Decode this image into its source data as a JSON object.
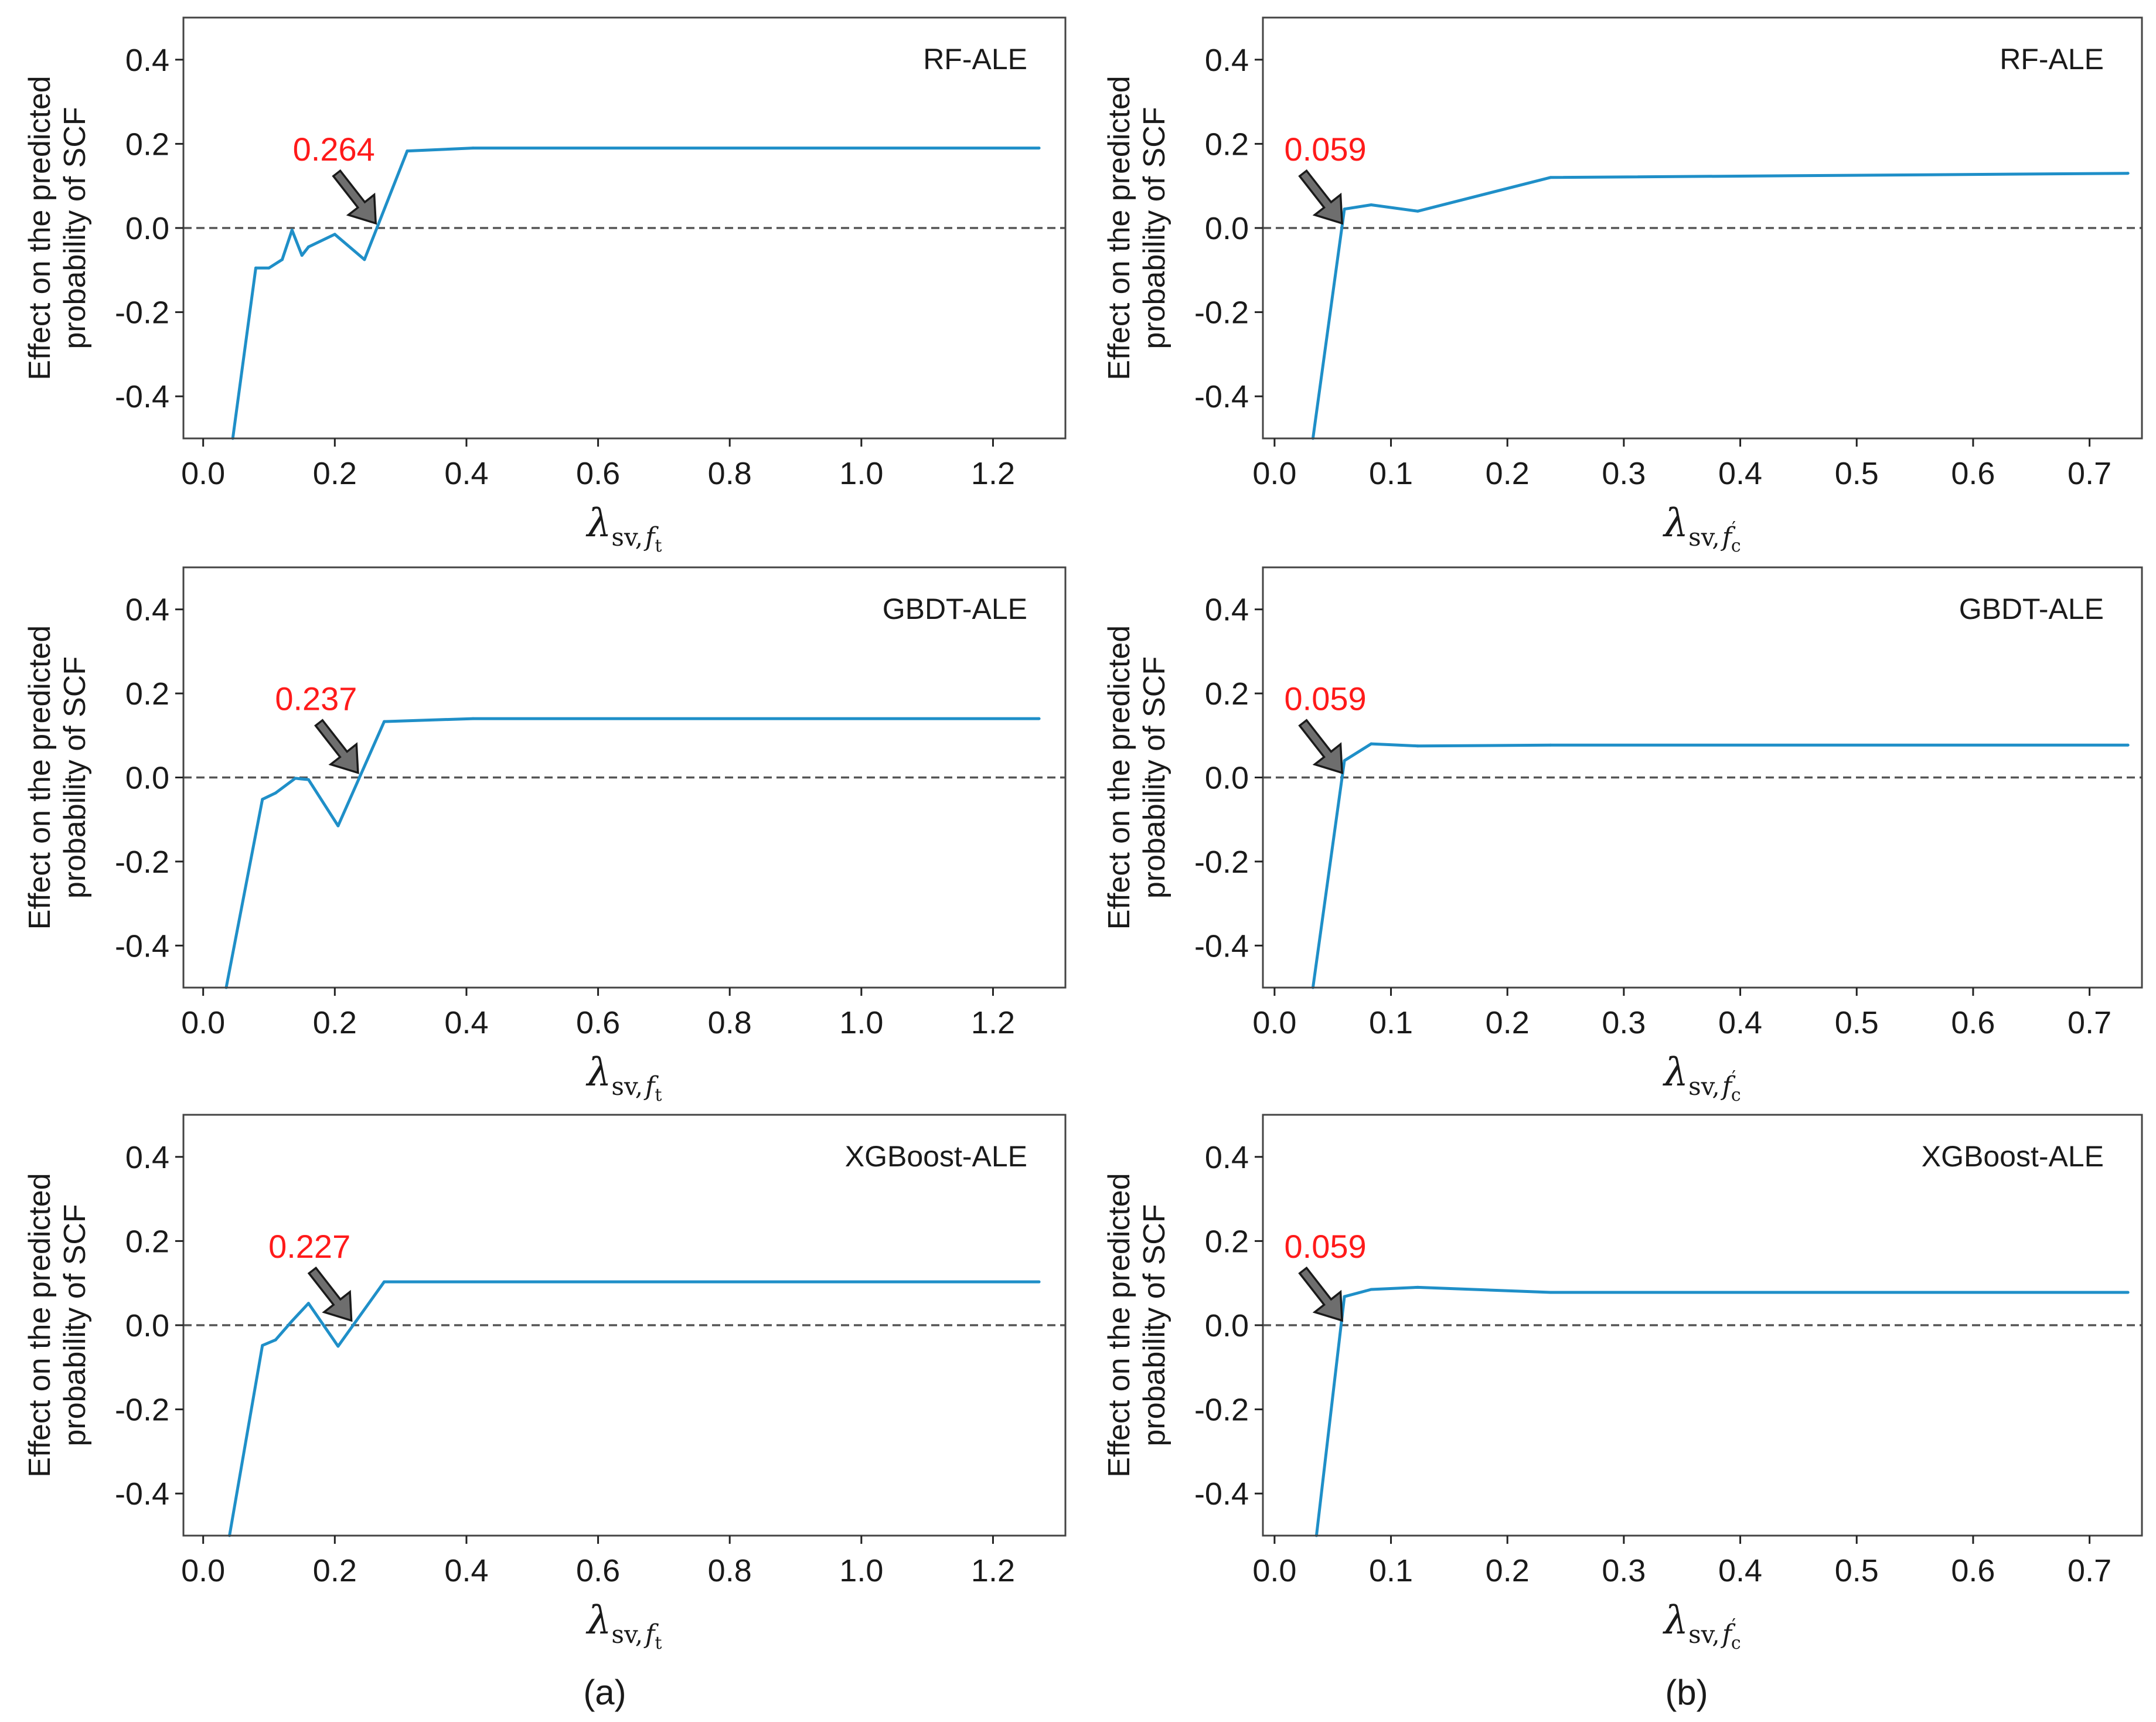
{
  "figure": {
    "panel_letters": [
      "(a)",
      "(b)"
    ],
    "colors": {
      "line": "#1f8fc8",
      "threshold": "#ff1a1a",
      "arrow": "#6e6e6e",
      "zero_line": "#555555",
      "frame": "#444444"
    }
  },
  "chart_data": [
    {
      "type": "line",
      "model": "RF-ALE",
      "column": "a",
      "ylabel_line1": "Effect on the predicted",
      "ylabel_line2": "probability of SCF",
      "xlabel": {
        "symbol": "λ",
        "sub": "sv,",
        "subvar": "f",
        "subsub": "t"
      },
      "xlim": [
        -0.03,
        1.31
      ],
      "ylim": [
        -0.5,
        0.5
      ],
      "xticks": [
        0.0,
        0.2,
        0.4,
        0.6,
        0.8,
        1.0,
        1.2
      ],
      "xtick_labels": [
        "0.0",
        "0.2",
        "0.4",
        "0.6",
        "0.8",
        "1.0",
        "1.2"
      ],
      "yticks": [
        0.4,
        0.2,
        0.0,
        -0.2,
        -0.4
      ],
      "ytick_labels": [
        "0.4",
        "0.2",
        "0.0",
        "-0.2",
        "-0.4"
      ],
      "threshold": {
        "label": "0.264",
        "value": 0.264
      },
      "x": [
        0.045,
        0.08,
        0.1,
        0.12,
        0.135,
        0.15,
        0.16,
        0.2,
        0.245,
        0.31,
        0.41,
        1.27
      ],
      "y": [
        -0.5,
        -0.095,
        -0.095,
        -0.075,
        -0.005,
        -0.065,
        -0.045,
        -0.015,
        -0.075,
        0.183,
        0.19,
        0.19
      ]
    },
    {
      "type": "line",
      "model": "RF-ALE",
      "column": "b",
      "ylabel_line1": "Effect on the predicted",
      "ylabel_line2": "probability of SCF",
      "xlabel": {
        "symbol": "λ",
        "sub": "sv,",
        "subvar": "f",
        "subsub": "c",
        "prime": "′"
      },
      "xlim": [
        -0.01,
        0.745
      ],
      "ylim": [
        -0.5,
        0.5
      ],
      "xticks": [
        0.0,
        0.1,
        0.2,
        0.3,
        0.4,
        0.5,
        0.6,
        0.7
      ],
      "xtick_labels": [
        "0.0",
        "0.1",
        "0.2",
        "0.3",
        "0.4",
        "0.5",
        "0.6",
        "0.7"
      ],
      "yticks": [
        0.4,
        0.2,
        0.0,
        -0.2,
        -0.4
      ],
      "ytick_labels": [
        "0.4",
        "0.2",
        "0.0",
        "-0.2",
        "-0.4"
      ],
      "threshold": {
        "label": "0.059",
        "value": 0.059
      },
      "x": [
        0.033,
        0.06,
        0.083,
        0.123,
        0.237,
        0.733
      ],
      "y": [
        -0.5,
        0.045,
        0.055,
        0.04,
        0.12,
        0.13
      ]
    },
    {
      "type": "line",
      "model": "GBDT-ALE",
      "column": "a",
      "ylabel_line1": "Effect on the predicted",
      "ylabel_line2": "probability of SCF",
      "xlabel": {
        "symbol": "λ",
        "sub": "sv,",
        "subvar": "f",
        "subsub": "t"
      },
      "xlim": [
        -0.03,
        1.31
      ],
      "ylim": [
        -0.5,
        0.5
      ],
      "xticks": [
        0.0,
        0.2,
        0.4,
        0.6,
        0.8,
        1.0,
        1.2
      ],
      "xtick_labels": [
        "0.0",
        "0.2",
        "0.4",
        "0.6",
        "0.8",
        "1.0",
        "1.2"
      ],
      "yticks": [
        0.4,
        0.2,
        0.0,
        -0.2,
        -0.4
      ],
      "ytick_labels": [
        "0.4",
        "0.2",
        "0.0",
        "-0.2",
        "-0.4"
      ],
      "threshold": {
        "label": "0.237",
        "value": 0.237
      },
      "x": [
        0.035,
        0.09,
        0.11,
        0.14,
        0.16,
        0.205,
        0.275,
        0.41,
        1.27
      ],
      "y": [
        -0.5,
        -0.052,
        -0.037,
        -0.002,
        -0.005,
        -0.115,
        0.133,
        0.14,
        0.14
      ]
    },
    {
      "type": "line",
      "model": "GBDT-ALE",
      "column": "b",
      "ylabel_line1": "Effect on the predicted",
      "ylabel_line2": "probability of SCF",
      "xlabel": {
        "symbol": "λ",
        "sub": "sv,",
        "subvar": "f",
        "subsub": "c",
        "prime": "′"
      },
      "xlim": [
        -0.01,
        0.745
      ],
      "ylim": [
        -0.5,
        0.5
      ],
      "xticks": [
        0.0,
        0.1,
        0.2,
        0.3,
        0.4,
        0.5,
        0.6,
        0.7
      ],
      "xtick_labels": [
        "0.0",
        "0.1",
        "0.2",
        "0.3",
        "0.4",
        "0.5",
        "0.6",
        "0.7"
      ],
      "yticks": [
        0.4,
        0.2,
        0.0,
        -0.2,
        -0.4
      ],
      "ytick_labels": [
        "0.4",
        "0.2",
        "0.0",
        "-0.2",
        "-0.4"
      ],
      "threshold": {
        "label": "0.059",
        "value": 0.059
      },
      "x": [
        0.033,
        0.06,
        0.083,
        0.123,
        0.237,
        0.733
      ],
      "y": [
        -0.5,
        0.04,
        0.08,
        0.075,
        0.077,
        0.077
      ]
    },
    {
      "type": "line",
      "model": "XGBoost-ALE",
      "column": "a",
      "ylabel_line1": "Effect on the predicted",
      "ylabel_line2": "probability of SCF",
      "xlabel": {
        "symbol": "λ",
        "sub": "sv,",
        "subvar": "f",
        "subsub": "t"
      },
      "xlim": [
        -0.03,
        1.31
      ],
      "ylim": [
        -0.5,
        0.5
      ],
      "xticks": [
        0.0,
        0.2,
        0.4,
        0.6,
        0.8,
        1.0,
        1.2
      ],
      "xtick_labels": [
        "0.0",
        "0.2",
        "0.4",
        "0.6",
        "0.8",
        "1.0",
        "1.2"
      ],
      "yticks": [
        0.4,
        0.2,
        0.0,
        -0.2,
        -0.4
      ],
      "ytick_labels": [
        "0.4",
        "0.2",
        "0.0",
        "-0.2",
        "-0.4"
      ],
      "threshold": {
        "label": "0.227",
        "value": 0.227
      },
      "x": [
        0.04,
        0.09,
        0.11,
        0.135,
        0.16,
        0.205,
        0.275,
        0.41,
        1.27
      ],
      "y": [
        -0.5,
        -0.048,
        -0.035,
        0.01,
        0.052,
        -0.05,
        0.103,
        0.103,
        0.103
      ]
    },
    {
      "type": "line",
      "model": "XGBoost-ALE",
      "column": "b",
      "ylabel_line1": "Effect on the predicted",
      "ylabel_line2": "probability of SCF",
      "xlabel": {
        "symbol": "λ",
        "sub": "sv,",
        "subvar": "f",
        "subsub": "c",
        "prime": "′"
      },
      "xlim": [
        -0.01,
        0.745
      ],
      "ylim": [
        -0.5,
        0.5
      ],
      "xticks": [
        0.0,
        0.1,
        0.2,
        0.3,
        0.4,
        0.5,
        0.6,
        0.7
      ],
      "xtick_labels": [
        "0.0",
        "0.1",
        "0.2",
        "0.3",
        "0.4",
        "0.5",
        "0.6",
        "0.7"
      ],
      "yticks": [
        0.4,
        0.2,
        0.0,
        -0.2,
        -0.4
      ],
      "ytick_labels": [
        "0.4",
        "0.2",
        "0.0",
        "-0.2",
        "-0.4"
      ],
      "threshold": {
        "label": "0.059",
        "value": 0.059
      },
      "x": [
        0.036,
        0.06,
        0.083,
        0.123,
        0.237,
        0.733
      ],
      "y": [
        -0.5,
        0.068,
        0.085,
        0.09,
        0.078,
        0.078
      ]
    }
  ]
}
